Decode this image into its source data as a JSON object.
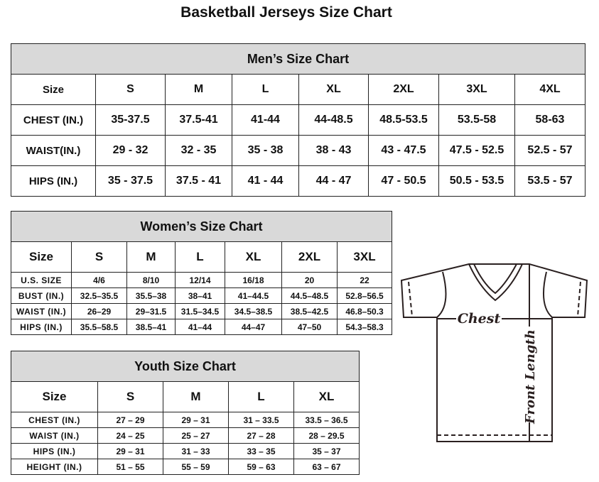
{
  "title": "Basketball Jerseys Size Chart",
  "men": {
    "caption": "Men’s Size Chart",
    "header": [
      "Size",
      "S",
      "M",
      "L",
      "XL",
      "2XL",
      "3XL",
      "4XL"
    ],
    "rows": [
      [
        "CHEST (IN.)",
        "35-37.5",
        "37.5-41",
        "41-44",
        "44-48.5",
        "48.5-53.5",
        "53.5-58",
        "58-63"
      ],
      [
        "WAIST(IN.)",
        "29 - 32",
        "32 - 35",
        "35 - 38",
        "38 - 43",
        "43 - 47.5",
        "47.5 - 52.5",
        "52.5 - 57"
      ],
      [
        "HIPS (IN.)",
        "35 - 37.5",
        "37.5 - 41",
        "41 - 44",
        "44 - 47",
        "47 - 50.5",
        "50.5 - 53.5",
        "53.5 - 57"
      ]
    ]
  },
  "women": {
    "caption": "Women’s Size Chart",
    "header": [
      "Size",
      "S",
      "M",
      "L",
      "XL",
      "2XL",
      "3XL"
    ],
    "rows": [
      [
        "U.S. SIZE",
        "4/6",
        "8/10",
        "12/14",
        "16/18",
        "20",
        "22"
      ],
      [
        "BUST (IN.)",
        "32.5–35.5",
        "35.5–38",
        "38–41",
        "41–44.5",
        "44.5–48.5",
        "52.8–56.5"
      ],
      [
        "WAIST (IN.)",
        "26–29",
        "29–31.5",
        "31.5–34.5",
        "34.5–38.5",
        "38.5–42.5",
        "46.8–50.3"
      ],
      [
        "HIPS (IN.)",
        "35.5–58.5",
        "38.5–41",
        "41–44",
        "44–47",
        "47–50",
        "54.3–58.3"
      ]
    ]
  },
  "youth": {
    "caption": "Youth Size Chart",
    "header": [
      "Size",
      "S",
      "M",
      "L",
      "XL"
    ],
    "rows": [
      [
        "CHEST (IN.)",
        "27 – 29",
        "29 – 31",
        "31 – 33.5",
        "33.5 – 36.5"
      ],
      [
        "WAIST (IN.)",
        "24 – 25",
        "25 – 27",
        "27 – 28",
        "28 – 29.5"
      ],
      [
        "HIPS (IN.)",
        "29 – 31",
        "31 – 33",
        "33 – 35",
        "35 – 37"
      ],
      [
        "HEIGHT (IN.)",
        "51 – 55",
        "55 – 59",
        "59 – 63",
        "63 – 67"
      ]
    ]
  },
  "diagram": {
    "chest_label": "Chest",
    "length_label": "Front Length"
  }
}
